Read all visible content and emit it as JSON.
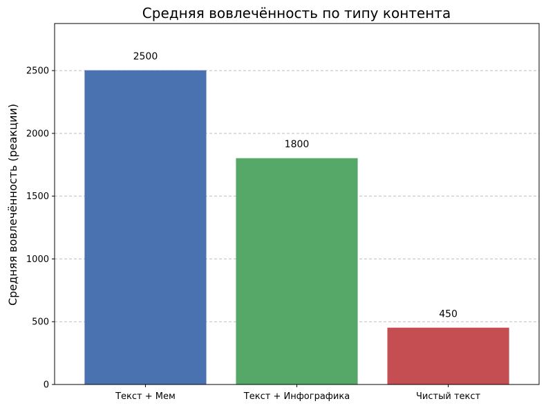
{
  "chart_data": {
    "type": "bar",
    "title": "Средняя вовлечённость по типу контента",
    "xlabel": "",
    "ylabel": "Средняя вовлечённость (реакции)",
    "categories": [
      "Текст + Мем",
      "Текст + Инфографика",
      "Чистый текст"
    ],
    "values": [
      2500,
      1800,
      450
    ],
    "value_labels": [
      "2500",
      "1800",
      "450"
    ],
    "colors": [
      "#4a72b0",
      "#55a868",
      "#c44e52"
    ],
    "ylim": [
      0,
      2875
    ],
    "yticks": [
      0,
      500,
      1000,
      1500,
      2000,
      2500
    ],
    "grid": "horizontal-dashed",
    "legend": "none"
  }
}
